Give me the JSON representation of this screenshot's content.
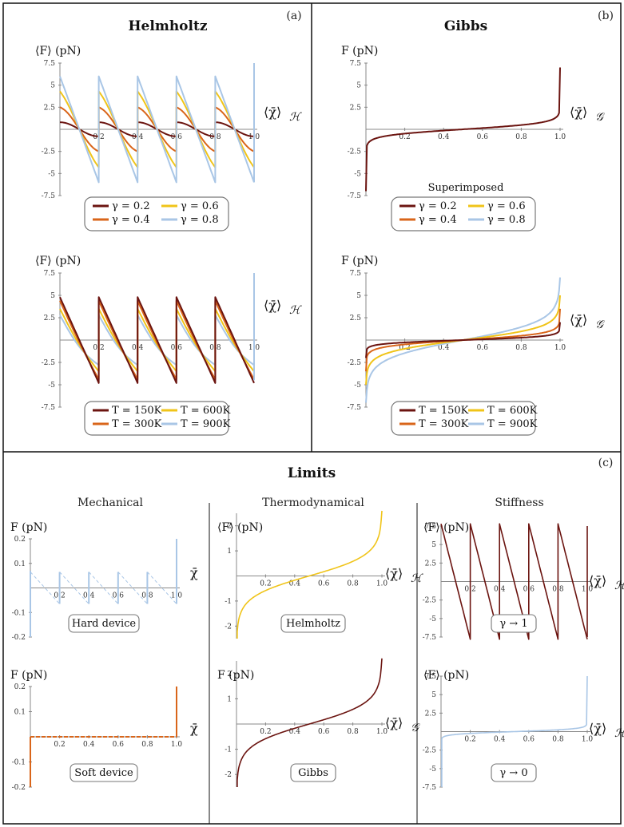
{
  "colors": {
    "c1": "#6b1410",
    "c2": "#d9651a",
    "c3": "#f0c419",
    "c4": "#a9c6e6"
  },
  "panels": {
    "a": {
      "title": "Helmholtz",
      "tag": "(a)"
    },
    "b": {
      "title": "Gibbs",
      "tag": "(b)",
      "superimposed": "Superimposed"
    },
    "c": {
      "title": "Limits",
      "tag": "(c)",
      "mechanical": "Mechanical",
      "thermo": "Thermodynamical",
      "stiffness": "Stiffness"
    }
  },
  "legends": {
    "gamma": [
      "γ = 0.2",
      "γ = 0.4",
      "γ = 0.6",
      "γ = 0.8"
    ],
    "temp": [
      "T = 150K",
      "T = 300K",
      "T = 600K",
      "T = 900K"
    ]
  },
  "captions": {
    "hard": "Hard device",
    "soft": "Soft device",
    "helm": "Helmholtz",
    "gibbs": "Gibbs",
    "g1": "γ → 1",
    "g0": "γ → 0"
  },
  "axis_labels": {
    "F_avg": "⟨F⟩ (pN)",
    "F": "F (pN)",
    "x_H": "⟨χ̄⟩",
    "x_H_sub": "ℋ",
    "x_G": "⟨χ̄⟩",
    "x_G_sub": "𝒢",
    "chi": "χ̄"
  },
  "chart_data": [
    {
      "id": "a1",
      "type": "line",
      "title": "Helmholtz",
      "xlabel": "⟨χ̄⟩_ℋ",
      "ylabel": "⟨F⟩ (pN)",
      "xlim": [
        0,
        1
      ],
      "ylim": [
        -7.5,
        7.5
      ],
      "yticks": [
        "7.5",
        "5",
        "2.5",
        "-2.5",
        "-5",
        "-7.5"
      ],
      "xticks": [
        "0.2",
        "0.4",
        "0.6",
        "0.8",
        "1.0"
      ],
      "series": [
        {
          "name": "γ = 0.2",
          "amplitude": 0.8
        },
        {
          "name": "γ = 0.4",
          "amplitude": 2.5
        },
        {
          "name": "γ = 0.6",
          "amplitude": 4.3
        },
        {
          "name": "γ = 0.8",
          "amplitude": 6.0
        }
      ]
    },
    {
      "id": "a2",
      "type": "line",
      "xlabel": "⟨χ̄⟩_ℋ",
      "ylabel": "⟨F⟩ (pN)",
      "xlim": [
        0,
        1
      ],
      "ylim": [
        -7.5,
        7.5
      ],
      "yticks": [
        "7.5",
        "5",
        "2.5",
        "-2.5",
        "-5",
        "-7.5"
      ],
      "xticks": [
        "0.2",
        "0.4",
        "0.6",
        "0.8",
        "1.0"
      ],
      "series": [
        {
          "name": "T = 150K",
          "amplitude": 4.8
        },
        {
          "name": "T = 300K",
          "amplitude": 4.4
        },
        {
          "name": "T = 600K",
          "amplitude": 3.5
        },
        {
          "name": "T = 900K",
          "amplitude": 2.8
        }
      ]
    },
    {
      "id": "b1",
      "type": "line",
      "title": "Gibbs",
      "xlabel": "⟨χ̄⟩_𝒢",
      "ylabel": "F (pN)",
      "xlim": [
        0,
        1
      ],
      "ylim": [
        -7.5,
        7.5
      ],
      "yticks": [
        "7.5",
        "5",
        "2.5",
        "-2.5",
        "-5",
        "-7.5"
      ],
      "xticks": [
        "0.2",
        "0.4",
        "0.6",
        "0.8",
        "1.0"
      ],
      "annotation": "Superimposed",
      "series": [
        {
          "name": "γ = 0.2 … 0.8",
          "scale": 1.0
        }
      ]
    },
    {
      "id": "b2",
      "type": "line",
      "xlabel": "⟨χ̄⟩_𝒢",
      "ylabel": "F (pN)",
      "xlim": [
        0,
        1
      ],
      "ylim": [
        -7.5,
        7.5
      ],
      "yticks": [
        "7.5",
        "5",
        "2.5",
        "-2.5",
        "-5",
        "-7.5"
      ],
      "xticks": [
        "0.2",
        "0.4",
        "0.6",
        "0.8",
        "1.0"
      ],
      "series": [
        {
          "name": "T = 150K",
          "scale": 0.55
        },
        {
          "name": "T = 300K",
          "scale": 1.0
        },
        {
          "name": "T = 600K",
          "scale": 2.0
        },
        {
          "name": "T = 900K",
          "scale": 3.0
        }
      ]
    },
    {
      "id": "c1",
      "type": "line",
      "title": "Mechanical",
      "caption": "Hard device",
      "xlabel": "χ̄",
      "ylabel": "F (pN)",
      "xlim": [
        0,
        1
      ],
      "ylim": [
        -0.2,
        0.2
      ],
      "yticks": [
        "0.2",
        "0.1",
        "-0.1",
        "-0.2"
      ],
      "xticks": [
        "0.2",
        "0.4",
        "0.6",
        "0.8",
        "1.0"
      ]
    },
    {
      "id": "c2",
      "type": "line",
      "caption": "Soft device",
      "xlabel": "χ̄",
      "ylabel": "F (pN)",
      "xlim": [
        0,
        1
      ],
      "ylim": [
        -0.2,
        0.2
      ],
      "yticks": [
        "0.2",
        "0.1",
        "-0.1",
        "-0.2"
      ],
      "xticks": [
        "0.2",
        "0.4",
        "0.6",
        "0.8",
        "1.0"
      ]
    },
    {
      "id": "c3",
      "type": "line",
      "title": "Thermodynamical",
      "caption": "Helmholtz",
      "xlabel": "⟨χ̄⟩_ℋ",
      "ylabel": "⟨F⟩ (pN)",
      "xlim": [
        0,
        1
      ],
      "ylim": [
        -2.5,
        2.5
      ],
      "yticks": [
        "2",
        "1",
        "-1",
        "-2"
      ],
      "xticks": [
        "0.2",
        "0.4",
        "0.6",
        "0.8",
        "1.0"
      ]
    },
    {
      "id": "c4",
      "type": "line",
      "caption": "Gibbs",
      "xlabel": "⟨χ̄⟩_𝒢",
      "ylabel": "F (pN)",
      "xlim": [
        0,
        1
      ],
      "ylim": [
        -2.5,
        2.5
      ],
      "yticks": [
        "2",
        "1",
        "-1",
        "-2"
      ],
      "xticks": [
        "0.2",
        "0.4",
        "0.6",
        "0.8",
        "1.0"
      ]
    },
    {
      "id": "c5",
      "type": "line",
      "title": "Stiffness",
      "caption": "γ → 1",
      "xlabel": "⟨χ̄⟩_ℋ",
      "ylabel": "⟨F⟩ (pN)",
      "xlim": [
        0,
        1
      ],
      "ylim": [
        -7.5,
        7.5
      ],
      "yticks": [
        "7.5",
        "5",
        "2.5",
        "-2.5",
        "-5",
        "-7.5"
      ],
      "xticks": [
        "0.2",
        "0.4",
        "0.6",
        "0.8",
        "1.0"
      ],
      "amplitude": 7.8
    },
    {
      "id": "c6",
      "type": "line",
      "caption": "γ → 0",
      "xlabel": "⟨χ̄⟩_ℋ",
      "ylabel": "⟨F⟩ (pN)",
      "xlim": [
        0,
        1
      ],
      "ylim": [
        -7.5,
        7.5
      ],
      "yticks": [
        "7.5",
        "5",
        "2.5",
        "-2.5",
        "-5",
        "-7.5"
      ],
      "xticks": [
        "0.2",
        "0.4",
        "0.6",
        "0.8",
        "1.0"
      ]
    }
  ]
}
